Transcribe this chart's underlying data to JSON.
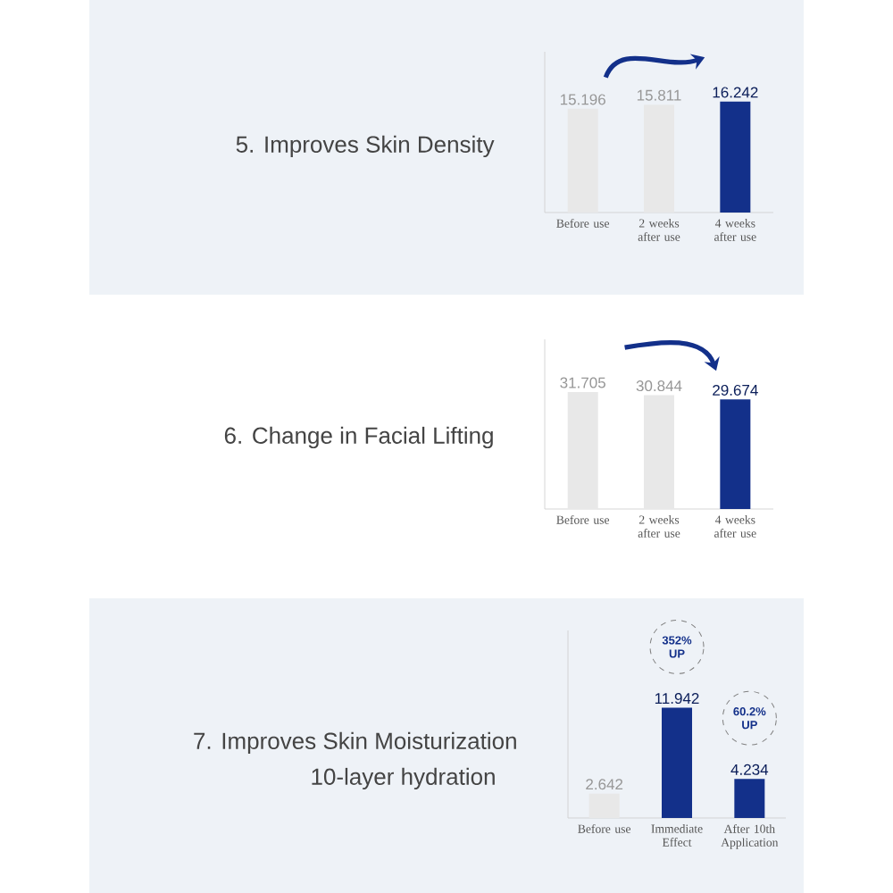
{
  "chart_data": [
    {
      "type": "bar",
      "title": "5. Improves Skin Density",
      "categories": [
        "Before use",
        "2 weeks after use",
        "4 weeks after use"
      ],
      "values": [
        15.196,
        15.811,
        16.242
      ],
      "colors": [
        "#e8e8e8",
        "#e8e8e8",
        "#13308a"
      ],
      "data_labels": true,
      "tick_labels": "x"
    },
    {
      "type": "bar",
      "title": "6. Change in Facial Lifting",
      "categories": [
        "Before use",
        "2 weeks after use",
        "4 weeks after use"
      ],
      "values": [
        31.705,
        30.844,
        29.674
      ],
      "colors": [
        "#e8e8e8",
        "#e8e8e8",
        "#13308a"
      ],
      "data_labels": true,
      "tick_labels": "x"
    },
    {
      "type": "bar",
      "title": "7. Improves Skin Moisturization",
      "subtitle": "10-layer hydration",
      "categories": [
        "Before use",
        "Immediate Effect",
        "After 10th Application"
      ],
      "values": [
        2.642,
        11.942,
        4.234
      ],
      "colors": [
        "#e8e8e8",
        "#13308a",
        "#13308a"
      ],
      "data_labels": true,
      "tick_labels": "x",
      "annotations": [
        "352% UP",
        "60.2% UP"
      ]
    }
  ]
}
